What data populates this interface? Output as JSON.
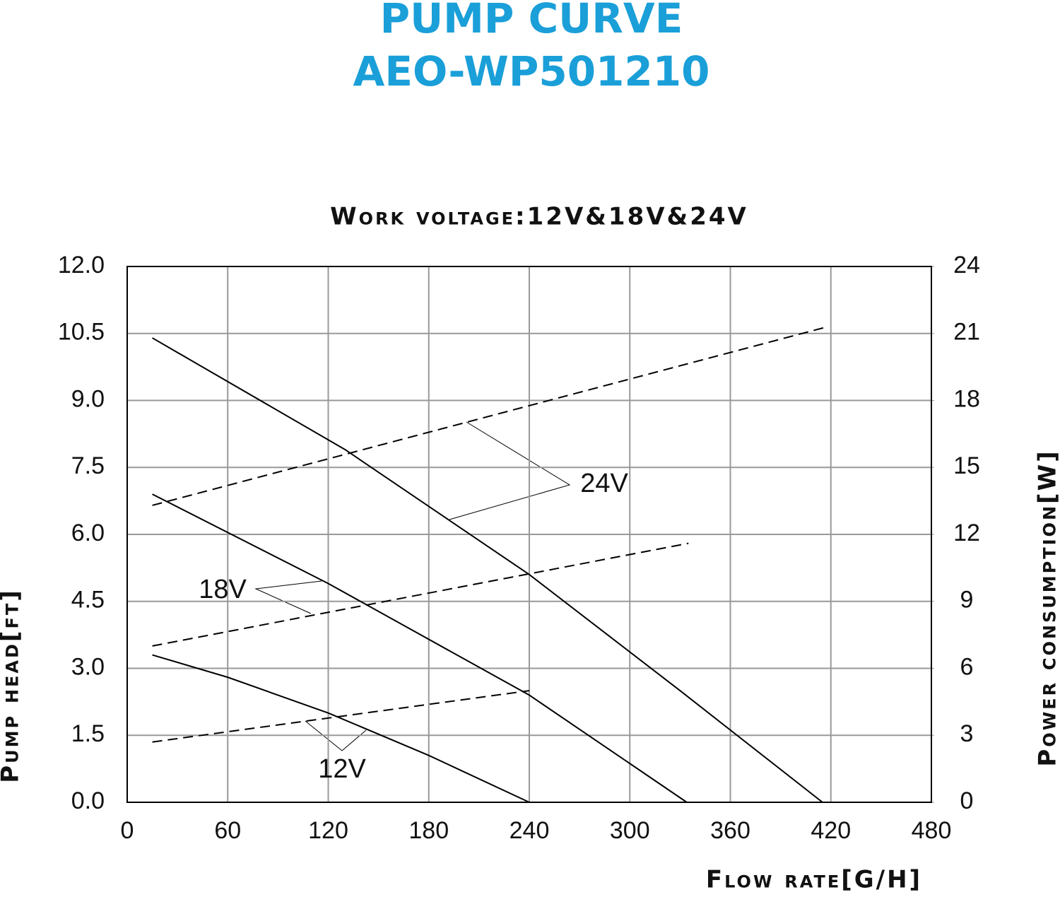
{
  "chart_data": {
    "type": "line",
    "title": "PUMP CURVE",
    "subtitle": "AEO-WP501210",
    "caption": "Work voltage:12V&18V&24V",
    "x_label": "Flow rate[G/H]",
    "y_label": "Pump head[ft]",
    "y2_label": "Power consumption[W]",
    "xlim": [
      0,
      480
    ],
    "xticks": [
      0,
      60,
      120,
      180,
      240,
      300,
      360,
      420,
      480
    ],
    "ylim": [
      0,
      12
    ],
    "yticks": [
      {
        "value": 0,
        "label": "0.0"
      },
      1.5,
      {
        "value": 3,
        "label": "3.0"
      },
      4.5,
      {
        "value": 6,
        "label": "6.0"
      },
      7.5,
      {
        "value": 9,
        "label": "9.0"
      },
      10.5,
      {
        "value": 12,
        "label": "12.0"
      }
    ],
    "y2lim": [
      0,
      24
    ],
    "y2ticks": [
      0,
      3,
      6,
      9,
      12,
      15,
      18,
      21,
      24
    ],
    "grid": true,
    "series": [
      {
        "color": "#000000",
        "dash": false,
        "x": [
          15,
          130,
          240,
          330,
          415
        ],
        "values": [
          10.4,
          7.9,
          5.1,
          2.5,
          0
        ]
      },
      {
        "color": "#000000",
        "dash": false,
        "x": [
          15,
          120,
          240,
          334
        ],
        "values": [
          6.9,
          4.9,
          2.4,
          0
        ]
      },
      {
        "color": "#000000",
        "dash": false,
        "x": [
          15,
          60,
          120,
          180,
          240
        ],
        "values": [
          3.3,
          2.8,
          2.0,
          1.05,
          0
        ]
      },
      {
        "color": "#000000",
        "dash": true,
        "axis": "y2",
        "x": [
          15,
          418
        ],
        "values": [
          13.3,
          21.3
        ]
      },
      {
        "color": "#000000",
        "dash": true,
        "axis": "y2",
        "x": [
          15,
          335
        ],
        "values": [
          7.0,
          11.6
        ]
      },
      {
        "color": "#000000",
        "dash": true,
        "axis": "y2",
        "x": [
          15,
          240
        ],
        "values": [
          2.7,
          5.0
        ]
      }
    ],
    "annotations": [
      "24V",
      "18V",
      "12V"
    ]
  }
}
